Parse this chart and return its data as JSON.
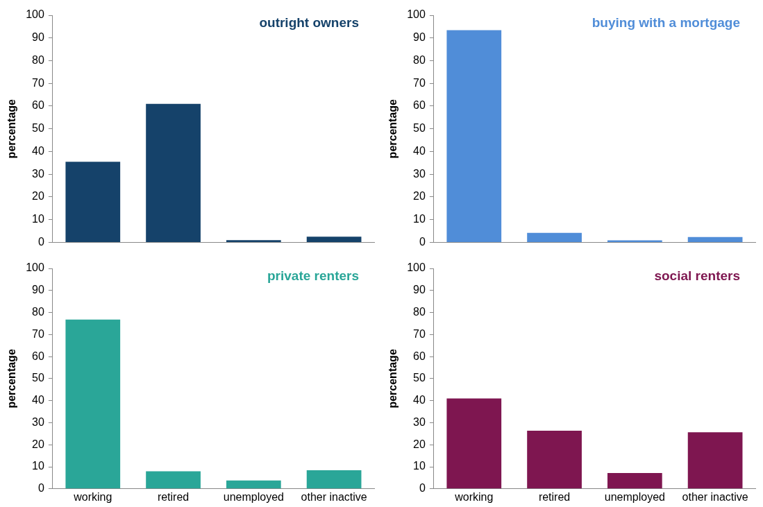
{
  "chart_data": [
    {
      "type": "bar",
      "title": "outright owners",
      "ylabel": "percentage",
      "categories": [
        null,
        null,
        null,
        null
      ],
      "values": [
        35.5,
        61,
        1,
        2.5
      ],
      "color": "#15426a",
      "ylim": [
        0,
        100
      ],
      "yticks": [
        0,
        10,
        20,
        30,
        40,
        50,
        60,
        70,
        80,
        90,
        100
      ],
      "grid": false,
      "tick_labels": "y"
    },
    {
      "type": "bar",
      "title": "buying with a mortgage",
      "ylabel": "percentage",
      "categories": [
        null,
        null,
        null,
        null
      ],
      "values": [
        93.4,
        4.2,
        0.9,
        2.3
      ],
      "color": "#508dd8",
      "ylim": [
        0,
        100
      ],
      "yticks": [
        0,
        10,
        20,
        30,
        40,
        50,
        60,
        70,
        80,
        90,
        100
      ],
      "grid": false,
      "tick_labels": "y"
    },
    {
      "type": "bar",
      "title": "private renters",
      "ylabel": "percentage",
      "categories": [
        "working",
        "retired",
        "unemployed",
        "other inactive"
      ],
      "values": [
        76.8,
        8,
        3.8,
        8.4
      ],
      "color": "#2aa698",
      "ylim": [
        0,
        100
      ],
      "yticks": [
        0,
        10,
        20,
        30,
        40,
        50,
        60,
        70,
        80,
        90,
        100
      ],
      "grid": false
    },
    {
      "type": "bar",
      "title": "social renters",
      "ylabel": "percentage",
      "categories": [
        "working",
        "retired",
        "unemployed",
        "other inactive"
      ],
      "values": [
        41,
        26.4,
        7.2,
        25.7
      ],
      "color": "#7e1650",
      "ylim": [
        0,
        100
      ],
      "yticks": [
        0,
        10,
        20,
        30,
        40,
        50,
        60,
        70,
        80,
        90,
        100
      ],
      "grid": false
    }
  ]
}
